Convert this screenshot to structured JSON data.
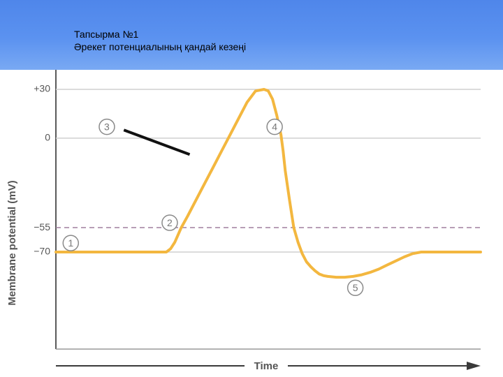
{
  "slide": {
    "title_line1": "Тапсырма №1",
    "title_line2": "Әрекет потенциалының қандай кезеңі"
  },
  "chart_data": {
    "type": "line",
    "xlabel": "Time",
    "ylabel": "Membrane potential (mV)",
    "ylim": [
      -90,
      35
    ],
    "yticks": [
      {
        "value": 30,
        "label": "+30"
      },
      {
        "value": 0,
        "label": "0"
      },
      {
        "value": -55,
        "label": "−55"
      },
      {
        "value": -70,
        "label": "−70"
      }
    ],
    "threshold": {
      "value": -55,
      "style": "dashed"
    },
    "gridlines": [
      30,
      0,
      -70
    ],
    "series": [
      {
        "x": [
          0,
          26,
          27,
          28,
          29.5,
          31,
          33,
          35,
          37,
          39,
          41,
          43,
          45,
          47,
          49,
          50,
          51,
          52,
          53,
          53.5,
          54,
          55,
          56,
          57,
          58,
          59,
          60,
          61,
          62,
          63,
          64,
          66,
          68,
          70,
          72,
          74,
          76,
          78,
          80,
          82,
          84,
          86,
          88,
          90,
          92,
          94,
          96,
          100
        ],
        "y": [
          -70,
          -70,
          -68,
          -64,
          -55,
          -48,
          -38,
          -28,
          -18,
          -8,
          2,
          12,
          22,
          29,
          30,
          29,
          24,
          14,
          2,
          -8,
          -20,
          -38,
          -55,
          -64,
          -71,
          -76,
          -79,
          -81.5,
          -83.5,
          -84.5,
          -85,
          -85.5,
          -85.5,
          -85,
          -84,
          -82.5,
          -80.5,
          -78,
          -75.5,
          -73,
          -71,
          -70,
          -70,
          -70,
          -70,
          -70,
          -70,
          -70
        ],
        "color": "#f3b73f"
      }
    ],
    "phase_markers": [
      {
        "label": "1",
        "x": 3.5,
        "y": -64.5
      },
      {
        "label": "2",
        "x": 26.8,
        "y": -52
      },
      {
        "label": "3",
        "x": 12,
        "y": 7
      },
      {
        "label": "4",
        "x": 51.5,
        "y": 7
      },
      {
        "label": "5",
        "x": 70.5,
        "y": -92
      }
    ],
    "pointer": {
      "from": [
        16,
        5
      ],
      "to": [
        31.5,
        -10
      ]
    }
  }
}
